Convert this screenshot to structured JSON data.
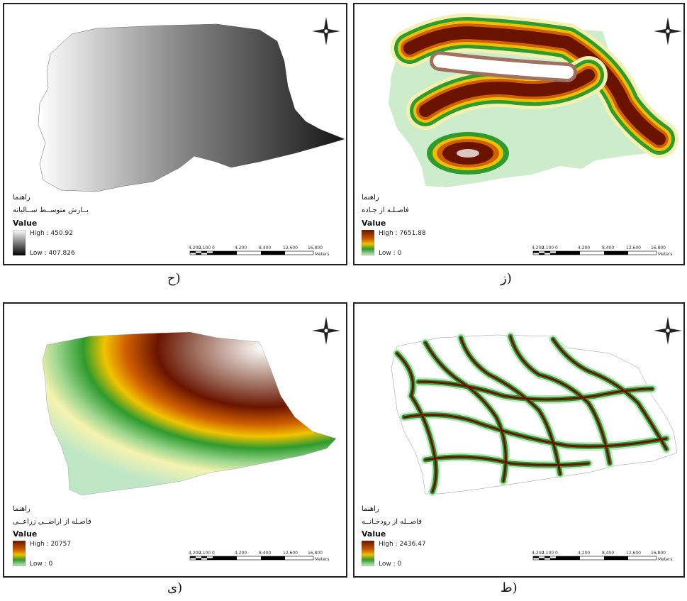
{
  "panels": [
    {
      "id": "rainfall",
      "legend_title": "راهنما",
      "legend_sub": "بــارش متوســط ســالیانه",
      "value_label": "Value",
      "high": "High : 450.92",
      "low": "Low : 407.826",
      "caption": "ح)"
    },
    {
      "id": "road",
      "legend_title": "راهنما",
      "legend_sub": "فاصـلـه از جـاده",
      "value_label": "Value",
      "high": "High : 7651.88",
      "low": "Low : 0",
      "caption": "ز)"
    },
    {
      "id": "agri",
      "legend_title": "راهنما",
      "legend_sub": "فاصـله از اراضــی زراعــی",
      "value_label": "Value",
      "high": "High : 20757",
      "low": "Low : 0",
      "caption": "ی)"
    },
    {
      "id": "river",
      "legend_title": "راهنما",
      "legend_sub": "فاصــله از رودخـانــه",
      "value_label": "Value",
      "high": "High : 2436.47",
      "low": "Low : 0",
      "caption": "ط)"
    }
  ],
  "scale": {
    "ticks": [
      "4,200",
      "2,100",
      "0",
      "4,200",
      "8,400",
      "12,600",
      "16,800"
    ],
    "unit": "Meters"
  },
  "colors": {
    "ramp_gray": [
      "#ffffff",
      "#000000"
    ],
    "ramp_distance": [
      "#7a1a00",
      "#e07b00",
      "#2e9b2e",
      "#cdeccb"
    ]
  }
}
